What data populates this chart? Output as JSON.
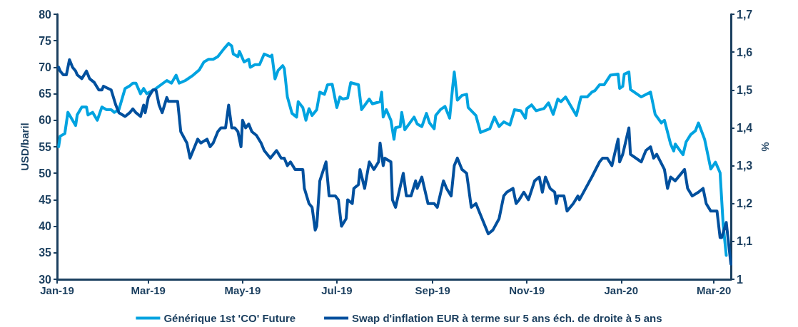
{
  "chart_data": {
    "type": "line",
    "ylabel": "USD/baril",
    "y2label": "%",
    "legend": "bottom",
    "marker": "none",
    "xlim": [
      "2019-01-01",
      "2020-03-12"
    ],
    "xticks": [
      {
        "value": "2019-01-01",
        "label": "Jan-19"
      },
      {
        "value": "2019-03-01",
        "label": "Mar-19"
      },
      {
        "value": "2019-05-01",
        "label": "May-19"
      },
      {
        "value": "2019-07-01",
        "label": "Jul-19"
      },
      {
        "value": "2019-09-01",
        "label": "Sep-19"
      },
      {
        "value": "2019-11-01",
        "label": "Nov-19"
      },
      {
        "value": "2020-01-01",
        "label": "Jan-20"
      },
      {
        "value": "2020-03-01",
        "label": "Mar-20"
      }
    ],
    "ylim": [
      30,
      80
    ],
    "yticks": [
      30,
      35,
      40,
      45,
      50,
      55,
      60,
      65,
      70,
      75,
      80
    ],
    "y2lim": [
      1,
      1.7
    ],
    "y2ticks": [
      1,
      {
        "value": 1.1,
        "label": "1,1"
      },
      {
        "value": 1.2,
        "label": "1,2"
      },
      {
        "value": 1.3,
        "label": "1,3"
      },
      {
        "value": 1.4,
        "label": "1,4"
      },
      {
        "value": 1.5,
        "label": "1,5"
      },
      {
        "value": 1.6,
        "label": "1,6"
      },
      {
        "value": 1.7,
        "label": "1,7"
      }
    ],
    "series": [
      {
        "name": "Générique 1st 'CO' Future",
        "color": "#00a3e0",
        "x": [
          "2019-01-02",
          "2019-01-03",
          "2019-01-06",
          "2019-01-08",
          "2019-01-11",
          "2019-01-13",
          "2019-01-14",
          "2019-01-17",
          "2019-01-20",
          "2019-01-21",
          "2019-01-24",
          "2019-01-27",
          "2019-01-30",
          "2019-02-02",
          "2019-02-05",
          "2019-02-07",
          "2019-02-10",
          "2019-02-14",
          "2019-02-17",
          "2019-02-19",
          "2019-02-21",
          "2019-02-24",
          "2019-02-26",
          "2019-02-28",
          "2019-03-03",
          "2019-03-06",
          "2019-03-13",
          "2019-03-16",
          "2019-03-19",
          "2019-03-21",
          "2019-03-25",
          "2019-03-30",
          "2019-04-03",
          "2019-04-06",
          "2019-04-09",
          "2019-04-12",
          "2019-04-15",
          "2019-04-19",
          "2019-04-22",
          "2019-04-24",
          "2019-04-25",
          "2019-04-28",
          "2019-04-29",
          "2019-05-02",
          "2019-05-05",
          "2019-05-06",
          "2019-05-09",
          "2019-05-12",
          "2019-05-15",
          "2019-05-19",
          "2019-05-20",
          "2019-05-22",
          "2019-05-24",
          "2019-05-27",
          "2019-05-28",
          "2019-05-30",
          "2019-06-02",
          "2019-06-05",
          "2019-06-06",
          "2019-06-09",
          "2019-06-11",
          "2019-06-13",
          "2019-06-15",
          "2019-06-18",
          "2019-06-20",
          "2019-06-23",
          "2019-06-25",
          "2019-06-28",
          "2019-07-01",
          "2019-07-03",
          "2019-07-05",
          "2019-07-08",
          "2019-07-10",
          "2019-07-15",
          "2019-07-17",
          "2019-07-22",
          "2019-07-24",
          "2019-07-29",
          "2019-07-30",
          "2019-07-31",
          "2019-08-02",
          "2019-08-05",
          "2019-08-07",
          "2019-08-08",
          "2019-08-11",
          "2019-08-12",
          "2019-08-14",
          "2019-08-20",
          "2019-08-22",
          "2019-08-25",
          "2019-08-28",
          "2019-08-30",
          "2019-09-02",
          "2019-09-03",
          "2019-09-06",
          "2019-09-09",
          "2019-09-12",
          "2019-09-14",
          "2019-09-15",
          "2019-09-17",
          "2019-09-20",
          "2019-09-23",
          "2019-09-24",
          "2019-09-27",
          "2019-09-29",
          "2019-10-02",
          "2019-10-08",
          "2019-10-11",
          "2019-10-14",
          "2019-10-17",
          "2019-10-21",
          "2019-10-24",
          "2019-10-28",
          "2019-10-31",
          "2019-11-01",
          "2019-11-04",
          "2019-11-07",
          "2019-11-12",
          "2019-11-15",
          "2019-11-18",
          "2019-11-21",
          "2019-11-23",
          "2019-11-26",
          "2019-11-29",
          "2019-12-03",
          "2019-12-06",
          "2019-12-10",
          "2019-12-13",
          "2019-12-15",
          "2019-12-18",
          "2019-12-21",
          "2019-12-25",
          "2019-12-30",
          "2019-12-31",
          "2020-01-02",
          "2020-01-03",
          "2020-01-06",
          "2020-01-07",
          "2020-01-14",
          "2020-01-20",
          "2020-01-23",
          "2020-01-27",
          "2020-01-29",
          "2020-02-02",
          "2020-02-04",
          "2020-02-05",
          "2020-02-10",
          "2020-02-12",
          "2020-02-15",
          "2020-02-18",
          "2020-02-20",
          "2020-02-24",
          "2020-02-28",
          "2020-03-02",
          "2020-03-05",
          "2020-03-07",
          "2020-03-09"
        ],
        "values": [
          55,
          57,
          57.5,
          61.5,
          60,
          59,
          61,
          62.5,
          62.5,
          61,
          61.5,
          60,
          62.5,
          62,
          62,
          61.5,
          62,
          66,
          66.5,
          67,
          67,
          65,
          66,
          65,
          65.5,
          66,
          67.5,
          67,
          68.5,
          67,
          67.5,
          68.5,
          69.5,
          71,
          71.5,
          71.5,
          72,
          73.5,
          74.5,
          74,
          72.5,
          72,
          73,
          71,
          71.5,
          70,
          70.5,
          70.5,
          72.5,
          72,
          72.3,
          67.8,
          69.4,
          70.3,
          69.8,
          64.4,
          61.3,
          60.6,
          63.5,
          62.4,
          60,
          62.2,
          60.9,
          62,
          65.3,
          64.9,
          66.7,
          66.8,
          62.4,
          64.4,
          64,
          64.2,
          67.1,
          66.7,
          62,
          64,
          63.1,
          63.5,
          65.3,
          60.6,
          62,
          60,
          56.4,
          58.6,
          58.8,
          61.5,
          58.2,
          60.6,
          59.3,
          58.8,
          61.3,
          59.5,
          58.4,
          60.9,
          62,
          62.6,
          60.4,
          66.4,
          69.1,
          63.8,
          64.7,
          64.9,
          62.4,
          61.5,
          60.9,
          57.7,
          58.4,
          60.6,
          58.8,
          59.7,
          59.1,
          62,
          61.8,
          60.4,
          62.2,
          62.9,
          61.8,
          62.2,
          63.3,
          61.1,
          64,
          63.5,
          64.4,
          62.9,
          60.9,
          64.4,
          64.4,
          65.3,
          65.6,
          66.7,
          66.7,
          68.5,
          68.7,
          66,
          66.4,
          68.7,
          69.1,
          65.8,
          64.4,
          65.3,
          61.1,
          59.5,
          60,
          55.5,
          54.2,
          55.5,
          53.5,
          55.9,
          57.3,
          58,
          59.5,
          56.4,
          50.8,
          52.1,
          50.1,
          40.3,
          34.5
        ]
      },
      {
        "name": "Swap d'inflation EUR à terme sur 5 ans éch. de droite à 5 ans",
        "color": "#00509e",
        "axis": "y2",
        "x": [
          "2019-01-02",
          "2019-01-03",
          "2019-01-05",
          "2019-01-07",
          "2019-01-09",
          "2019-01-11",
          "2019-01-13",
          "2019-01-14",
          "2019-01-17",
          "2019-01-20",
          "2019-01-22",
          "2019-01-25",
          "2019-01-28",
          "2019-01-30",
          "2019-01-31",
          "2019-02-05",
          "2019-02-08",
          "2019-02-10",
          "2019-02-14",
          "2019-02-17",
          "2019-02-19",
          "2019-02-21",
          "2019-02-24",
          "2019-02-26",
          "2019-02-27",
          "2019-03-01",
          "2019-03-04",
          "2019-03-06",
          "2019-03-08",
          "2019-03-10",
          "2019-03-13",
          "2019-03-14",
          "2019-03-17",
          "2019-03-20",
          "2019-03-22",
          "2019-03-26",
          "2019-03-28",
          "2019-03-31",
          "2019-04-02",
          "2019-04-04",
          "2019-04-08",
          "2019-04-10",
          "2019-04-12",
          "2019-04-15",
          "2019-04-17",
          "2019-04-20",
          "2019-04-22",
          "2019-04-24",
          "2019-04-26",
          "2019-04-28",
          "2019-04-30",
          "2019-05-01",
          "2019-05-03",
          "2019-05-05",
          "2019-05-07",
          "2019-05-10",
          "2019-05-13",
          "2019-05-15",
          "2019-05-19",
          "2019-05-23",
          "2019-05-26",
          "2019-05-28",
          "2019-05-30",
          "2019-06-01",
          "2019-06-04",
          "2019-06-09",
          "2019-06-10",
          "2019-06-13",
          "2019-06-15",
          "2019-06-17",
          "2019-06-18",
          "2019-06-20",
          "2019-06-24",
          "2019-06-26",
          "2019-06-30",
          "2019-07-02",
          "2019-07-04",
          "2019-07-07",
          "2019-07-08",
          "2019-07-11",
          "2019-07-12",
          "2019-07-15",
          "2019-07-16",
          "2019-07-19",
          "2019-07-22",
          "2019-07-25",
          "2019-07-28",
          "2019-07-29",
          "2019-07-31",
          "2019-08-01",
          "2019-08-05",
          "2019-08-06",
          "2019-08-08",
          "2019-08-13",
          "2019-08-15",
          "2019-08-18",
          "2019-08-21",
          "2019-08-22",
          "2019-08-25",
          "2019-08-29",
          "2019-09-02",
          "2019-09-04",
          "2019-09-08",
          "2019-09-10",
          "2019-09-13",
          "2019-09-15",
          "2019-09-17",
          "2019-09-20",
          "2019-09-23",
          "2019-09-26",
          "2019-09-29",
          "2019-10-07",
          "2019-10-10",
          "2019-10-14",
          "2019-10-17",
          "2019-10-19",
          "2019-10-23",
          "2019-10-25",
          "2019-10-27",
          "2019-10-30",
          "2019-11-02",
          "2019-11-06",
          "2019-11-09",
          "2019-11-11",
          "2019-11-13",
          "2019-11-16",
          "2019-11-19",
          "2019-11-20",
          "2019-11-21",
          "2019-11-25",
          "2019-11-27",
          "2019-12-01",
          "2019-12-04",
          "2019-12-05",
          "2019-12-13",
          "2019-12-18",
          "2019-12-20",
          "2019-12-23",
          "2019-12-26",
          "2019-12-30",
          "2019-12-31",
          "2020-01-02",
          "2020-01-06",
          "2020-01-07",
          "2020-01-14",
          "2020-01-17",
          "2020-01-20",
          "2020-01-22",
          "2020-01-24",
          "2020-01-29",
          "2020-01-31",
          "2020-02-02",
          "2020-02-05",
          "2020-02-11",
          "2020-02-13",
          "2020-02-16",
          "2020-02-20",
          "2020-02-23",
          "2020-02-25",
          "2020-02-28",
          "2020-03-03",
          "2020-03-05",
          "2020-03-06",
          "2020-03-09",
          "2020-03-12"
        ],
        "values": [
          1.56,
          1.55,
          1.54,
          1.54,
          1.58,
          1.56,
          1.55,
          1.54,
          1.53,
          1.55,
          1.53,
          1.52,
          1.5,
          1.5,
          1.51,
          1.5,
          1.46,
          1.44,
          1.43,
          1.44,
          1.45,
          1.44,
          1.43,
          1.46,
          1.44,
          1.48,
          1.5,
          1.5,
          1.46,
          1.44,
          1.48,
          1.47,
          1.47,
          1.47,
          1.39,
          1.36,
          1.32,
          1.35,
          1.37,
          1.36,
          1.37,
          1.35,
          1.36,
          1.39,
          1.4,
          1.4,
          1.46,
          1.4,
          1.4,
          1.39,
          1.35,
          1.42,
          1.4,
          1.41,
          1.39,
          1.38,
          1.36,
          1.34,
          1.32,
          1.34,
          1.32,
          1.32,
          1.3,
          1.31,
          1.29,
          1.29,
          1.24,
          1.2,
          1.19,
          1.13,
          1.14,
          1.26,
          1.31,
          1.22,
          1.22,
          1.21,
          1.14,
          1.16,
          1.21,
          1.2,
          1.24,
          1.25,
          1.29,
          1.24,
          1.31,
          1.29,
          1.31,
          1.36,
          1.3,
          1.32,
          1.31,
          1.21,
          1.19,
          1.28,
          1.22,
          1.22,
          1.26,
          1.24,
          1.27,
          1.2,
          1.2,
          1.19,
          1.26,
          1.24,
          1.22,
          1.3,
          1.32,
          1.29,
          1.28,
          1.19,
          1.2,
          1.12,
          1.13,
          1.16,
          1.22,
          1.23,
          1.24,
          1.2,
          1.21,
          1.23,
          1.21,
          1.26,
          1.27,
          1.23,
          1.27,
          1.24,
          1.23,
          1.2,
          1.22,
          1.22,
          1.18,
          1.2,
          1.22,
          1.21,
          1.27,
          1.31,
          1.32,
          1.32,
          1.3,
          1.37,
          1.31,
          1.33,
          1.4,
          1.33,
          1.31,
          1.34,
          1.35,
          1.32,
          1.33,
          1.29,
          1.24,
          1.27,
          1.26,
          1.29,
          1.24,
          1.22,
          1.23,
          1.24,
          1.2,
          1.18,
          1.18,
          1.11,
          1.11,
          1.15,
          1.04
        ]
      }
    ]
  }
}
